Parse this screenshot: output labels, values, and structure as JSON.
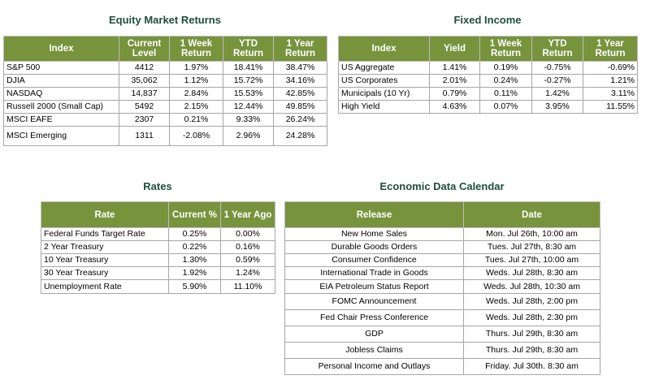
{
  "equity": {
    "title": "Equity Market Returns",
    "headers": [
      "Index",
      "Current Level",
      "1 Week Return",
      "YTD Return",
      "1 Year Return"
    ],
    "rows": [
      [
        "S&P 500",
        "4412",
        "1.97%",
        "18.41%",
        "38.47%"
      ],
      [
        "DJIA",
        "35,062",
        "1.12%",
        "15.72%",
        "34.16%"
      ],
      [
        "NASDAQ",
        "14,837",
        "2.84%",
        "15.53%",
        "42.85%"
      ],
      [
        "Russell 2000 (Small Cap)",
        "5492",
        "2.15%",
        "12.44%",
        "49.85%"
      ],
      [
        "MSCI EAFE",
        "2307",
        "0.21%",
        "9.33%",
        "26.24%"
      ],
      [
        "MSCI Emerging",
        "1311",
        "-2.08%",
        "2.96%",
        "24.28%"
      ]
    ]
  },
  "fixed_income": {
    "title": "Fixed Income",
    "headers": [
      "Index",
      "Yield",
      "1 Week Return",
      "YTD Return",
      "1 Year Return"
    ],
    "rows": [
      [
        "US Aggregate",
        "1.41%",
        "0.19%",
        "-0.75%",
        "-0.69%"
      ],
      [
        "US Corporates",
        "2.01%",
        "0.24%",
        "-0.27%",
        "1.21%"
      ],
      [
        "Municipals (10 Yr)",
        "0.79%",
        "0.11%",
        "1.42%",
        "3.11%"
      ],
      [
        "High Yield",
        "4.63%",
        "0.07%",
        "3.95%",
        "11.55%"
      ]
    ]
  },
  "rates": {
    "title": "Rates",
    "headers": [
      "Rate",
      "Current %",
      "1 Year Ago"
    ],
    "rows": [
      [
        "Federal Funds Target Rate",
        "0.25%",
        "0.00%"
      ],
      [
        "2 Year Treasury",
        "0.22%",
        "0.16%"
      ],
      [
        "10 Year Treasury",
        "1.30%",
        "0.59%"
      ],
      [
        "30 Year Treasury",
        "1.92%",
        "1.24%"
      ],
      [
        "Unemployment Rate",
        "5.90%",
        "11.10%"
      ]
    ]
  },
  "calendar": {
    "title": "Economic Data Calendar",
    "headers": [
      "Release",
      "Date"
    ],
    "rows": [
      [
        "New Home Sales",
        "Mon. Jul 26th, 10:00 am"
      ],
      [
        "Durable Goods Orders",
        "Tues. Jul 27th, 8:30 am"
      ],
      [
        "Consumer Confidence",
        "Tues. Jul 27th, 10:00 am"
      ],
      [
        "International Trade in Goods",
        "Weds. Jul 28th, 8:30 am"
      ],
      [
        "EIA Petroleum Status Report",
        "Weds. Jul 28th, 10:30 am"
      ],
      [
        "FOMC Announcement",
        "Weds. Jul 28th, 2:00 pm"
      ],
      [
        "Fed Chair Press Conference",
        "Weds. Jul 28th, 2:30 pm"
      ],
      [
        "GDP",
        "Thurs. Jul 29th, 8:30 am"
      ],
      [
        "Jobless Claims",
        "Thurs. Jul 29th, 8:30 am"
      ],
      [
        "Personal Income and Outlays",
        "Friday. Jul 30th. 8:30 am"
      ]
    ]
  }
}
